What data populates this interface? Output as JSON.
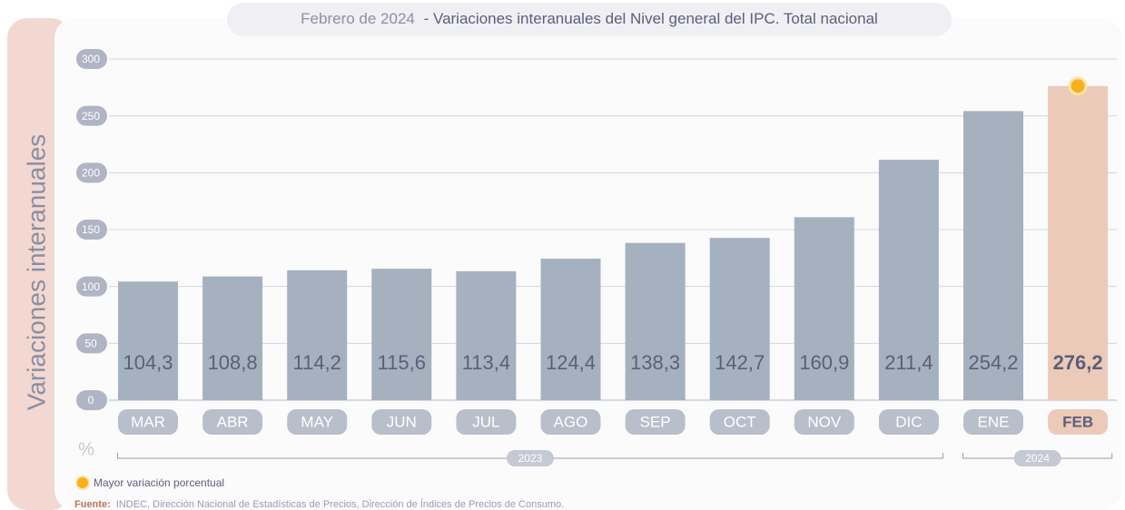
{
  "chart_data": {
    "type": "bar",
    "title_date": "Febrero de 2024",
    "title": "- Variaciones interanuales del Nivel general del IPC. Total nacional",
    "y_label": "Variaciones interanuales",
    "y_unit": "%",
    "categories": [
      "MAR",
      "ABR",
      "MAY",
      "JUN",
      "JUL",
      "AGO",
      "SEP",
      "OCT",
      "NOV",
      "DIC",
      "ENE",
      "FEB"
    ],
    "values": [
      104.3,
      108.8,
      114.2,
      115.6,
      113.4,
      124.4,
      138.3,
      142.7,
      160.9,
      211.4,
      254.2,
      276.2
    ],
    "value_labels": [
      "104,3",
      "108,8",
      "114,2",
      "115,6",
      "113,4",
      "124,4",
      "138,3",
      "142,7",
      "160,9",
      "211,4",
      "254,2",
      "276,2"
    ],
    "color": "#a5b1bf",
    "highlight": "FEB",
    "highlight_color": "#ebcab9",
    "marker_color": "#f5b21b",
    "ylim": [
      0,
      300
    ],
    "yticks": [
      0,
      50,
      100,
      150,
      200,
      250,
      300
    ],
    "grid": true,
    "year_groups": [
      {
        "label": "2023",
        "from": "MAR",
        "to": "DIC"
      },
      {
        "label": "2024",
        "from": "ENE",
        "to": "FEB"
      }
    ],
    "legend": "Mayor variación porcentual",
    "source_label": "Fuente:",
    "source": "INDEC, Dirección Nacional de Estadísticas de Precios, Dirección de Índices de Precios de Consumo."
  }
}
